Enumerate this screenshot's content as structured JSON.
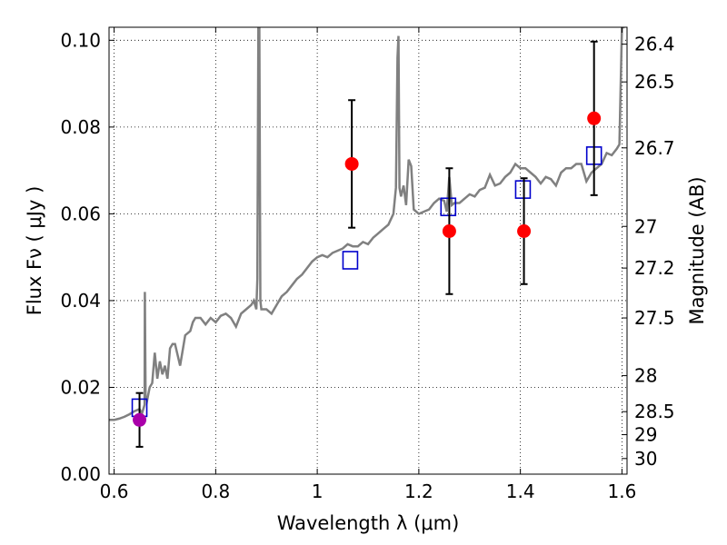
{
  "chart_data": {
    "type": "scatter",
    "title": "",
    "xlabel": "Wavelength  λ (μm)",
    "ylabel": "Flux  Fν  ( μJy )",
    "ylabel_right": "Magnitude (AB)",
    "xlim": [
      0.59,
      1.61
    ],
    "ylim": [
      0.0,
      0.103
    ],
    "x_ticks": [
      0.6,
      0.8,
      1.0,
      1.2,
      1.4,
      1.6
    ],
    "x_tick_labels": [
      "0.6",
      "0.8",
      "1",
      "1.2",
      "1.4",
      "1.6"
    ],
    "y_ticks": [
      0.0,
      0.02,
      0.04,
      0.06,
      0.08,
      0.1
    ],
    "y_tick_labels": [
      "0.00",
      "0.02",
      "0.04",
      "0.06",
      "0.08",
      "0.10"
    ],
    "right_ticks": [
      {
        "label": "26.4",
        "flux": 0.0991
      },
      {
        "label": "26.5",
        "flux": 0.0904
      },
      {
        "label": "26.7",
        "flux": 0.0752
      },
      {
        "label": "27",
        "flux": 0.0571
      },
      {
        "label": "27.2",
        "flux": 0.0475
      },
      {
        "label": "27.5",
        "flux": 0.036
      },
      {
        "label": "28",
        "flux": 0.0227
      },
      {
        "label": "28.5",
        "flux": 0.0144
      },
      {
        "label": "29",
        "flux": 0.0091
      },
      {
        "label": "30",
        "flux": 0.0036
      }
    ],
    "grid": true,
    "colors": {
      "spectrum": "#808080",
      "observed": "#ff0000",
      "observed_first": "#aa00aa",
      "model": "#0000cc",
      "errorbar": "#000000"
    },
    "series": [
      {
        "type": "line",
        "x": [
          0.59,
          0.6,
          0.61,
          0.62,
          0.63,
          0.64,
          0.65,
          0.655,
          0.66,
          0.6605,
          0.662,
          0.665,
          0.67,
          0.675,
          0.68,
          0.685,
          0.69,
          0.695,
          0.7,
          0.705,
          0.71,
          0.715,
          0.72,
          0.73,
          0.74,
          0.75,
          0.755,
          0.76,
          0.77,
          0.78,
          0.79,
          0.8,
          0.81,
          0.82,
          0.83,
          0.84,
          0.85,
          0.86,
          0.87,
          0.875,
          0.88,
          0.882,
          0.884,
          0.886,
          0.888,
          0.89,
          0.9,
          0.91,
          0.92,
          0.93,
          0.94,
          0.95,
          0.96,
          0.97,
          0.98,
          0.99,
          1.0,
          1.01,
          1.02,
          1.03,
          1.04,
          1.05,
          1.06,
          1.07,
          1.08,
          1.09,
          1.1,
          1.11,
          1.12,
          1.13,
          1.14,
          1.15,
          1.155,
          1.158,
          1.16,
          1.162,
          1.165,
          1.17,
          1.175,
          1.18,
          1.185,
          1.19,
          1.2,
          1.21,
          1.22,
          1.23,
          1.24,
          1.25,
          1.255,
          1.26,
          1.265,
          1.27,
          1.28,
          1.29,
          1.3,
          1.31,
          1.32,
          1.33,
          1.34,
          1.35,
          1.36,
          1.37,
          1.38,
          1.39,
          1.4,
          1.41,
          1.42,
          1.43,
          1.44,
          1.45,
          1.46,
          1.47,
          1.48,
          1.49,
          1.5,
          1.51,
          1.52,
          1.53,
          1.54,
          1.55,
          1.56,
          1.57,
          1.58,
          1.59,
          1.595,
          1.6,
          1.605
        ],
        "y": [
          0.0125,
          0.0125,
          0.0128,
          0.0132,
          0.0138,
          0.0145,
          0.015,
          0.014,
          0.016,
          0.042,
          0.018,
          0.017,
          0.02,
          0.021,
          0.028,
          0.022,
          0.026,
          0.023,
          0.025,
          0.022,
          0.029,
          0.03,
          0.03,
          0.025,
          0.032,
          0.033,
          0.035,
          0.036,
          0.036,
          0.0345,
          0.036,
          0.035,
          0.0365,
          0.037,
          0.036,
          0.034,
          0.037,
          0.038,
          0.039,
          0.04,
          0.038,
          0.045,
          0.103,
          0.103,
          0.04,
          0.038,
          0.038,
          0.037,
          0.039,
          0.041,
          0.042,
          0.0435,
          0.045,
          0.046,
          0.0475,
          0.049,
          0.05,
          0.0505,
          0.05,
          0.051,
          0.0515,
          0.052,
          0.053,
          0.0525,
          0.0525,
          0.0535,
          0.053,
          0.0545,
          0.0555,
          0.0565,
          0.0575,
          0.06,
          0.066,
          0.096,
          0.101,
          0.066,
          0.064,
          0.0665,
          0.062,
          0.0725,
          0.071,
          0.061,
          0.06,
          0.0605,
          0.061,
          0.0625,
          0.0635,
          0.063,
          0.0605,
          0.0685,
          0.062,
          0.0625,
          0.0625,
          0.0635,
          0.0645,
          0.064,
          0.0655,
          0.066,
          0.069,
          0.0665,
          0.067,
          0.0685,
          0.0695,
          0.0715,
          0.0705,
          0.0705,
          0.0695,
          0.0685,
          0.067,
          0.0685,
          0.068,
          0.0665,
          0.0695,
          0.0705,
          0.0705,
          0.0715,
          0.0715,
          0.0675,
          0.0695,
          0.0705,
          0.0715,
          0.074,
          0.0735,
          0.075,
          0.076,
          0.103,
          0.103
        ]
      },
      {
        "type": "model_points",
        "x": [
          0.65,
          1.065,
          1.258,
          1.405,
          1.545
        ],
        "y": [
          0.0152,
          0.0492,
          0.0615,
          0.0655,
          0.0733
        ]
      },
      {
        "type": "observed_points",
        "x": [
          0.65,
          1.068,
          1.26,
          1.407,
          1.545
        ],
        "y": [
          0.0125,
          0.0715,
          0.056,
          0.056,
          0.082
        ],
        "yerr": [
          0.0062,
          0.0147,
          0.0145,
          0.0122,
          0.0177
        ]
      }
    ]
  }
}
